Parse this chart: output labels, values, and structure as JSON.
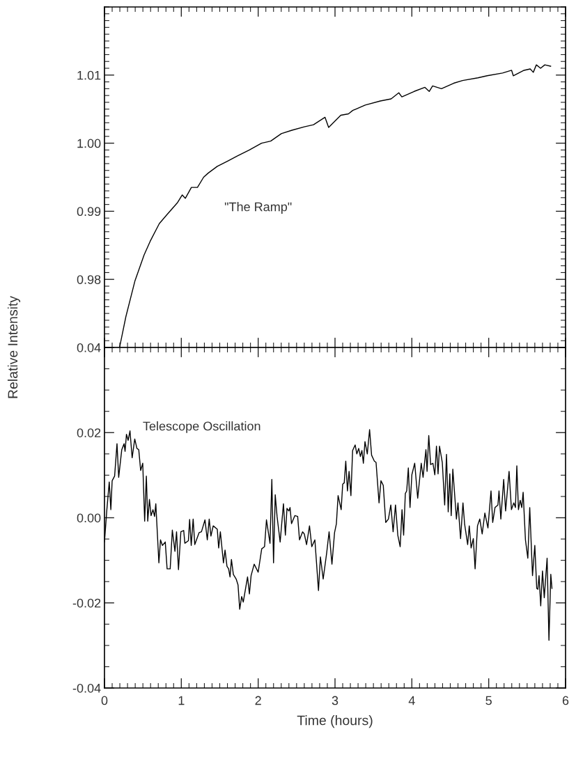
{
  "chart_data": [
    {
      "type": "line",
      "ylabel": "Relative Intensity",
      "annotations": [
        "\"The Ramp\""
      ],
      "tick_labels": "y",
      "xlim": [
        0,
        6
      ],
      "xticks": [
        {
          "value": 0,
          "label": null
        },
        {
          "value": 1,
          "label": null
        },
        {
          "value": 2,
          "label": null
        },
        {
          "value": 3,
          "label": null
        },
        {
          "value": 4,
          "label": null
        },
        {
          "value": 5,
          "label": null
        },
        {
          "value": 6,
          "label": null
        }
      ],
      "ylim": [
        0.97,
        1.02
      ],
      "yticks": [
        {
          "value": 0.98,
          "label": "0.98"
        },
        {
          "value": 0.99,
          "label": "0.99"
        },
        {
          "value": 1.0,
          "label": "1.00"
        },
        {
          "value": 1.01,
          "label": "1.01"
        }
      ],
      "series": [
        {
          "color": "#000000",
          "x": [
            0.198,
            0.278,
            0.397,
            0.516,
            0.595,
            0.714,
            0.813,
            0.952,
            1.012,
            1.052,
            1.131,
            1.21,
            1.29,
            1.349,
            1.468,
            1.607,
            1.726,
            1.885,
            2.044,
            2.163,
            2.302,
            2.44,
            2.6,
            2.72,
            2.87,
            2.917,
            3.075,
            3.175,
            3.23,
            3.393,
            3.59,
            3.73,
            3.83,
            3.87,
            4.03,
            4.17,
            4.226,
            4.27,
            4.385,
            4.544,
            4.66,
            4.86,
            4.98,
            5.18,
            5.298,
            5.32,
            5.46,
            5.54,
            5.58,
            5.62,
            5.675,
            5.73,
            5.806
          ],
          "values": [
            0.9701,
            0.9745,
            0.9798,
            0.9836,
            0.9856,
            0.9882,
            0.9895,
            0.9913,
            0.9924,
            0.9919,
            0.9935,
            0.9935,
            0.995,
            0.9956,
            0.9966,
            0.9974,
            0.9981,
            0.999,
            1.0,
            1.0003,
            1.0014,
            1.0019,
            1.0024,
            1.0027,
            1.0038,
            1.0023,
            1.0041,
            1.0043,
            1.0048,
            1.0056,
            1.0062,
            1.0065,
            1.0074,
            1.0068,
            1.0076,
            1.0082,
            1.0076,
            1.0084,
            1.008,
            1.0088,
            1.0092,
            1.0096,
            1.0099,
            1.0103,
            1.0107,
            1.0099,
            1.0107,
            1.0109,
            1.0104,
            1.0115,
            1.011,
            1.0115,
            1.0113
          ]
        }
      ]
    },
    {
      "type": "line",
      "xlabel": "Time (hours)",
      "annotations": [
        "Telescope Oscillation"
      ],
      "xlim": [
        0,
        6
      ],
      "xticks": [
        0,
        1,
        2,
        3,
        4,
        5,
        6
      ],
      "ylim": [
        -0.04,
        0.04
      ],
      "yticks": [
        {
          "value": -0.04,
          "label": "-0.04"
        },
        {
          "value": -0.02,
          "label": "-0.02"
        },
        {
          "value": 0,
          "label": "0.00"
        },
        {
          "value": 0.02,
          "label": "0.02"
        },
        {
          "value": 0.04,
          "label": "0.04"
        }
      ],
      "series": [
        {
          "color": "#000000",
          "x": [
            0,
            0.031,
            0.062,
            0.083,
            0.1,
            0.132,
            0.163,
            0.185,
            0.225,
            0.255,
            0.268,
            0.286,
            0.308,
            0.332,
            0.36,
            0.394,
            0.422,
            0.446,
            0.471,
            0.498,
            0.523,
            0.545,
            0.563,
            0.585,
            0.606,
            0.631,
            0.652,
            0.668,
            0.708,
            0.729,
            0.754,
            0.791,
            0.815,
            0.855,
            0.883,
            0.917,
            0.938,
            0.963,
            0.994,
            1.031,
            1.046,
            1.092,
            1.108,
            1.129,
            1.154,
            1.175,
            1.231,
            1.262,
            1.308,
            1.338,
            1.363,
            1.385,
            1.415,
            1.468,
            1.486,
            1.508,
            1.548,
            1.569,
            1.594,
            1.615,
            1.634,
            1.652,
            1.677,
            1.714,
            1.738,
            1.76,
            1.785,
            1.806,
            1.862,
            1.886,
            1.908,
            1.948,
            2.0,
            2.046,
            2.083,
            2.108,
            2.154,
            2.178,
            2.2,
            2.222,
            2.246,
            2.286,
            2.329,
            2.354,
            2.375,
            2.4,
            2.415,
            2.434,
            2.477,
            2.514,
            2.538,
            2.578,
            2.6,
            2.63,
            2.668,
            2.698,
            2.738,
            2.785,
            2.81,
            2.846,
            2.892,
            2.923,
            2.96,
            2.994,
            3.018,
            3.04,
            3.08,
            3.1,
            3.12,
            3.14,
            3.162,
            3.183,
            3.207,
            3.229,
            3.262,
            3.284,
            3.308,
            3.33,
            3.35,
            3.369,
            3.39,
            3.42,
            3.45,
            3.476,
            3.512,
            3.534,
            3.573,
            3.598,
            3.628,
            3.66,
            3.695,
            3.726,
            3.756,
            3.787,
            3.817,
            3.848,
            3.872,
            3.893,
            3.915,
            3.933,
            3.954,
            3.976,
            4.0,
            4.037,
            4.076,
            4.122,
            4.146,
            4.183,
            4.198,
            4.22,
            4.244,
            4.274,
            4.299,
            4.32,
            4.341,
            4.36,
            4.396,
            4.427,
            4.451,
            4.473,
            4.494,
            4.512,
            4.533,
            4.58,
            4.6,
            4.634,
            4.665,
            4.686,
            4.726,
            4.747,
            4.771,
            4.8,
            4.823,
            4.854,
            4.884,
            4.915,
            4.95,
            4.99,
            5.03,
            5.052,
            5.082,
            5.12,
            5.134,
            5.158,
            5.195,
            5.22,
            5.265,
            5.296,
            5.326,
            5.348,
            5.366,
            5.387,
            5.41,
            5.43,
            5.448,
            5.478,
            5.509,
            5.534,
            5.57,
            5.6,
            5.625,
            5.64,
            5.655,
            5.677,
            5.7,
            5.723,
            5.76,
            5.784,
            5.808,
            5.823
          ],
          "values": [
            -0.0057,
            0.0019,
            0.0084,
            0.0019,
            0.0087,
            0.0098,
            0.0174,
            0.0095,
            0.016,
            0.0174,
            0.0156,
            0.0196,
            0.0182,
            0.0204,
            0.0141,
            0.0185,
            0.0163,
            0.016,
            0.0111,
            0.0128,
            -0.0008,
            0.0098,
            -0.0008,
            0.0043,
            0.0005,
            0.0019,
            0.0003,
            0.0033,
            -0.0106,
            -0.0052,
            -0.0065,
            -0.0057,
            -0.012,
            -0.012,
            -0.0029,
            -0.0079,
            -0.0033,
            -0.0122,
            -0.0033,
            -0.003,
            -0.006,
            -0.0054,
            -0.0004,
            -0.0065,
            -0.0003,
            -0.0063,
            -0.0035,
            -0.0033,
            -0.0005,
            -0.0052,
            -0.0003,
            -0.0043,
            -0.0019,
            -0.0027,
            -0.0071,
            -0.0033,
            -0.0106,
            -0.0076,
            -0.0114,
            -0.012,
            -0.0139,
            -0.0098,
            -0.0133,
            -0.0144,
            -0.0158,
            -0.0215,
            -0.0185,
            -0.0198,
            -0.0139,
            -0.0179,
            -0.0136,
            -0.0109,
            -0.0128,
            -0.0073,
            -0.0068,
            -0.0005,
            -0.006,
            0.009,
            -0.0106,
            0.0054,
            0.0003,
            -0.0057,
            0.0033,
            -0.0041,
            0.0022,
            0.0016,
            0.0024,
            -0.0014,
            0.0005,
            0.0003,
            -0.0052,
            -0.0033,
            -0.0038,
            -0.0063,
            -0.0019,
            -0.0068,
            -0.0052,
            -0.0171,
            -0.0092,
            -0.0144,
            -0.0082,
            -0.0033,
            -0.0109,
            -0.0035,
            -0.0014,
            0.0052,
            0.0019,
            0.0079,
            0.0082,
            0.0133,
            0.0063,
            0.0109,
            0.0052,
            0.0158,
            0.0171,
            0.015,
            0.0163,
            0.0144,
            0.0158,
            0.0128,
            0.0179,
            0.015,
            0.0207,
            0.0147,
            0.0133,
            0.013,
            0.0035,
            0.0087,
            0.0076,
            -0.0011,
            -0.0003,
            0.003,
            -0.0033,
            0.003,
            -0.0041,
            -0.0068,
            0.0019,
            -0.0041,
            0.0057,
            0.0063,
            0.0117,
            0.0024,
            0.0101,
            0.0128,
            0.0046,
            0.0128,
            0.0095,
            0.016,
            0.0109,
            0.0193,
            0.0125,
            0.0128,
            0.0101,
            0.0168,
            0.0103,
            0.0168,
            0.013,
            0.003,
            0.0149,
            0.0014,
            0.0103,
            0.0005,
            0.0114,
            -0.0003,
            0.0035,
            -0.0049,
            0.0035,
            -0.0014,
            -0.0063,
            -0.0019,
            -0.0071,
            -0.0049,
            -0.012,
            -0.0019,
            -0.0003,
            -0.0038,
            0.0011,
            -0.0024,
            0.0063,
            -0.0011,
            0.0024,
            0.003,
            0.0063,
            -0.0003,
            0.009,
            0.0016,
            0.0109,
            0.0019,
            0.0035,
            0.0024,
            0.0122,
            0.0019,
            0.0041,
            0.0024,
            0.006,
            -0.0052,
            -0.0095,
            0.0024,
            -0.0136,
            -0.0065,
            -0.0166,
            -0.0168,
            -0.0136,
            -0.0207,
            -0.0125,
            -0.0188,
            -0.0095,
            -0.0288,
            -0.0133,
            -0.0166
          ]
        }
      ]
    }
  ]
}
